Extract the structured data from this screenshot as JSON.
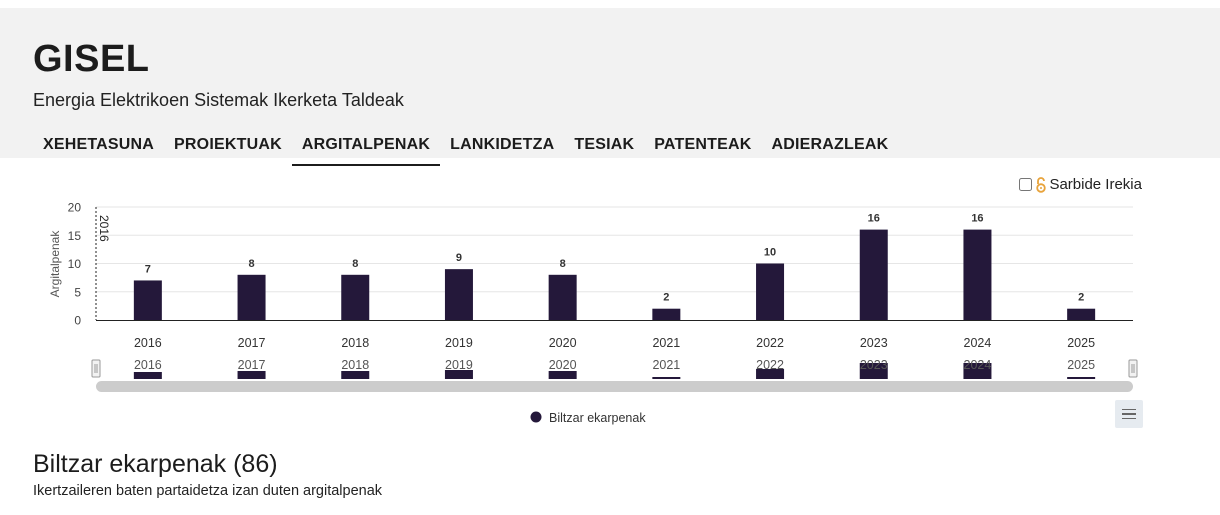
{
  "header": {
    "title": "GISEL",
    "subtitle": "Energia Elektrikoen Sistemak Ikerketa Taldeak"
  },
  "tabs": [
    {
      "label": "XEHETASUNA"
    },
    {
      "label": "PROIEKTUAK"
    },
    {
      "label": "ARGITALPENAK",
      "active": true
    },
    {
      "label": "LANKIDETZA"
    },
    {
      "label": "TESIAK"
    },
    {
      "label": "PATENTEAK"
    },
    {
      "label": "ADIERAZLEAK"
    }
  ],
  "open_access": {
    "label": "Sarbide Irekia",
    "checked": false
  },
  "chart_data": {
    "type": "bar",
    "categories": [
      "2016",
      "2017",
      "2018",
      "2019",
      "2020",
      "2021",
      "2022",
      "2023",
      "2024",
      "2025"
    ],
    "series": [
      {
        "name": "Biltzar ekarpenak",
        "values": [
          7,
          8,
          8,
          9,
          8,
          2,
          10,
          16,
          16,
          2
        ],
        "color": "#24183a"
      }
    ],
    "ylabel": "Argitalpenak",
    "xlabel": "",
    "ylim": [
      0,
      20
    ],
    "yticks": [
      0,
      5,
      10,
      15,
      20
    ],
    "crosshair_label": "2016",
    "legend": "bottom-center"
  },
  "section": {
    "title": "Biltzar ekarpenak (86)",
    "subtitle": "Ikertzaileren baten partaidetza izan duten argitalpenak"
  },
  "colors": {
    "bar": "#24183a",
    "header_bg": "#f2f2f2",
    "lock": "#e8a33b"
  }
}
